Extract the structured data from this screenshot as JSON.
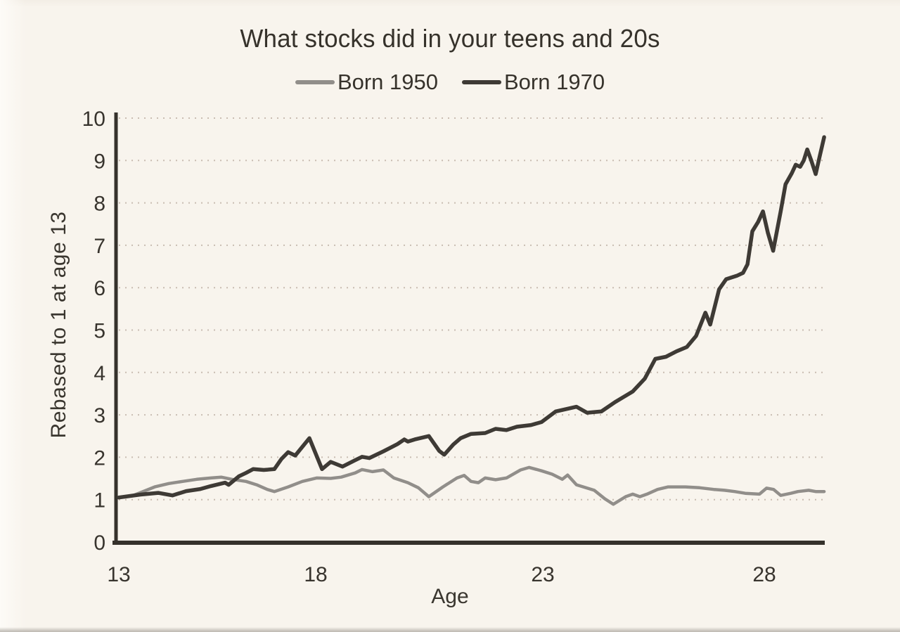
{
  "page": {
    "background_color": "#f8f4ed",
    "text_color": "#36322b"
  },
  "chart_data": {
    "type": "line",
    "title": "What stocks did in your teens and 20s",
    "xlabel": "Age",
    "ylabel": "Rebased to 1 at age 13",
    "xlim": [
      13,
      29.5
    ],
    "ylim": [
      0,
      10
    ],
    "xticks": [
      13,
      18,
      23,
      28
    ],
    "yticks": [
      0,
      1,
      2,
      3,
      4,
      5,
      6,
      7,
      8,
      9,
      10
    ],
    "grid": "horizontal-dotted",
    "gridline_color": "#ab9a8c",
    "axis_color": "#35312b",
    "legend_position": "top-center",
    "series": [
      {
        "name": "Born 1950",
        "color": "#918e8a",
        "x": [
          13.0,
          13.37,
          13.91,
          14.27,
          14.62,
          14.98,
          15.34,
          15.6,
          15.87,
          16.23,
          16.5,
          16.77,
          16.95,
          17.3,
          17.66,
          18.02,
          18.33,
          18.56,
          18.87,
          19.02,
          19.25,
          19.49,
          19.72,
          20.03,
          20.26,
          20.49,
          20.8,
          21.11,
          21.27,
          21.42,
          21.58,
          21.73,
          21.96,
          22.2,
          22.51,
          22.7,
          22.97,
          23.21,
          23.44,
          23.56,
          23.76,
          24.16,
          24.4,
          24.59,
          24.87,
          25.03,
          25.19,
          25.35,
          25.59,
          25.83,
          26.22,
          26.54,
          26.86,
          27.1,
          27.33,
          27.57,
          27.89,
          28.05,
          28.21,
          28.37,
          28.6,
          28.76,
          29.0,
          29.16,
          29.35
        ],
        "values": [
          1.05,
          1.1,
          1.3,
          1.38,
          1.43,
          1.48,
          1.51,
          1.53,
          1.48,
          1.43,
          1.35,
          1.24,
          1.19,
          1.3,
          1.43,
          1.51,
          1.5,
          1.53,
          1.63,
          1.71,
          1.66,
          1.7,
          1.51,
          1.4,
          1.28,
          1.07,
          1.3,
          1.51,
          1.57,
          1.43,
          1.4,
          1.51,
          1.47,
          1.51,
          1.7,
          1.76,
          1.68,
          1.6,
          1.48,
          1.58,
          1.35,
          1.22,
          1.02,
          0.89,
          1.07,
          1.13,
          1.07,
          1.13,
          1.24,
          1.3,
          1.3,
          1.28,
          1.24,
          1.22,
          1.19,
          1.15,
          1.13,
          1.27,
          1.24,
          1.1,
          1.15,
          1.19,
          1.22,
          1.19,
          1.19
        ]
      },
      {
        "name": "Born 1970",
        "color": "#3e3a35",
        "x": [
          13.0,
          13.55,
          14.0,
          14.36,
          14.71,
          15.07,
          15.34,
          15.7,
          15.79,
          16.05,
          16.23,
          16.41,
          16.68,
          16.95,
          17.13,
          17.3,
          17.48,
          17.84,
          18.14,
          18.33,
          18.59,
          18.87,
          19.02,
          19.18,
          19.49,
          19.8,
          19.95,
          20.03,
          20.18,
          20.49,
          20.72,
          20.83,
          21.03,
          21.19,
          21.42,
          21.73,
          21.96,
          22.2,
          22.43,
          22.74,
          22.97,
          23.29,
          23.76,
          24.0,
          24.32,
          24.63,
          25.03,
          25.3,
          25.54,
          25.78,
          26.02,
          26.25,
          26.46,
          26.67,
          26.78,
          26.98,
          27.14,
          27.38,
          27.52,
          27.62,
          27.73,
          27.86,
          27.97,
          28.08,
          28.2,
          28.37,
          28.48,
          28.62,
          28.71,
          28.81,
          28.89,
          28.97,
          29.06,
          29.16,
          29.25,
          29.35
        ],
        "values": [
          1.05,
          1.12,
          1.16,
          1.1,
          1.2,
          1.25,
          1.32,
          1.4,
          1.35,
          1.55,
          1.63,
          1.72,
          1.7,
          1.72,
          1.96,
          2.12,
          2.04,
          2.45,
          1.72,
          1.89,
          1.78,
          1.93,
          2.01,
          1.98,
          2.14,
          2.31,
          2.42,
          2.37,
          2.42,
          2.5,
          2.15,
          2.06,
          2.3,
          2.45,
          2.55,
          2.57,
          2.67,
          2.64,
          2.72,
          2.76,
          2.83,
          3.08,
          3.19,
          3.05,
          3.08,
          3.3,
          3.55,
          3.85,
          4.32,
          4.37,
          4.5,
          4.6,
          4.86,
          5.41,
          5.13,
          5.96,
          6.2,
          6.28,
          6.35,
          6.55,
          7.33,
          7.55,
          7.8,
          7.3,
          6.87,
          7.8,
          8.44,
          8.7,
          8.9,
          8.85,
          9.0,
          9.26,
          9.0,
          8.68,
          9.1,
          9.55
        ]
      }
    ]
  }
}
